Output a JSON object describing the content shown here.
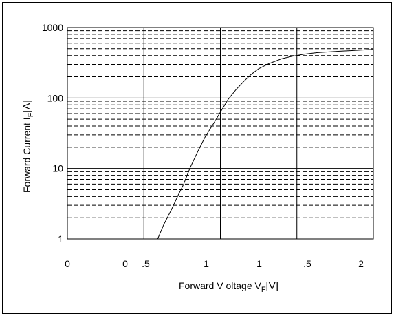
{
  "chart_data": {
    "type": "line",
    "xlabel": {
      "text": "Forward V oltage V",
      "sub": "F",
      "unit": "[V]"
    },
    "ylabel": {
      "text": "Forward  Current  I",
      "sub": "F",
      "unit": "[A]"
    },
    "x_ticks": [
      "0",
      "0",
      ".5",
      "1",
      "1",
      ".5",
      "2"
    ],
    "y_ticks": [
      "1",
      "10",
      "100",
      "1000"
    ],
    "y_scale": "log",
    "ylim": [
      1,
      1000
    ],
    "xlim": [
      0,
      2.0
    ],
    "grid": true,
    "series": [
      {
        "x": [
          0.59,
          0.63,
          0.68,
          0.72,
          0.76,
          0.8,
          0.85,
          0.9,
          0.96,
          1.0,
          1.05,
          1.1,
          1.15,
          1.2,
          1.25,
          1.32,
          1.4,
          1.47,
          1.55,
          1.63,
          1.7,
          1.77,
          1.85,
          1.93,
          2.0
        ],
        "y": [
          1,
          1.6,
          2.6,
          4,
          6,
          10,
          17,
          28,
          45,
          63,
          95,
          130,
          170,
          215,
          260,
          310,
          360,
          390,
          420,
          440,
          450,
          460,
          470,
          480,
          490
        ]
      }
    ]
  }
}
